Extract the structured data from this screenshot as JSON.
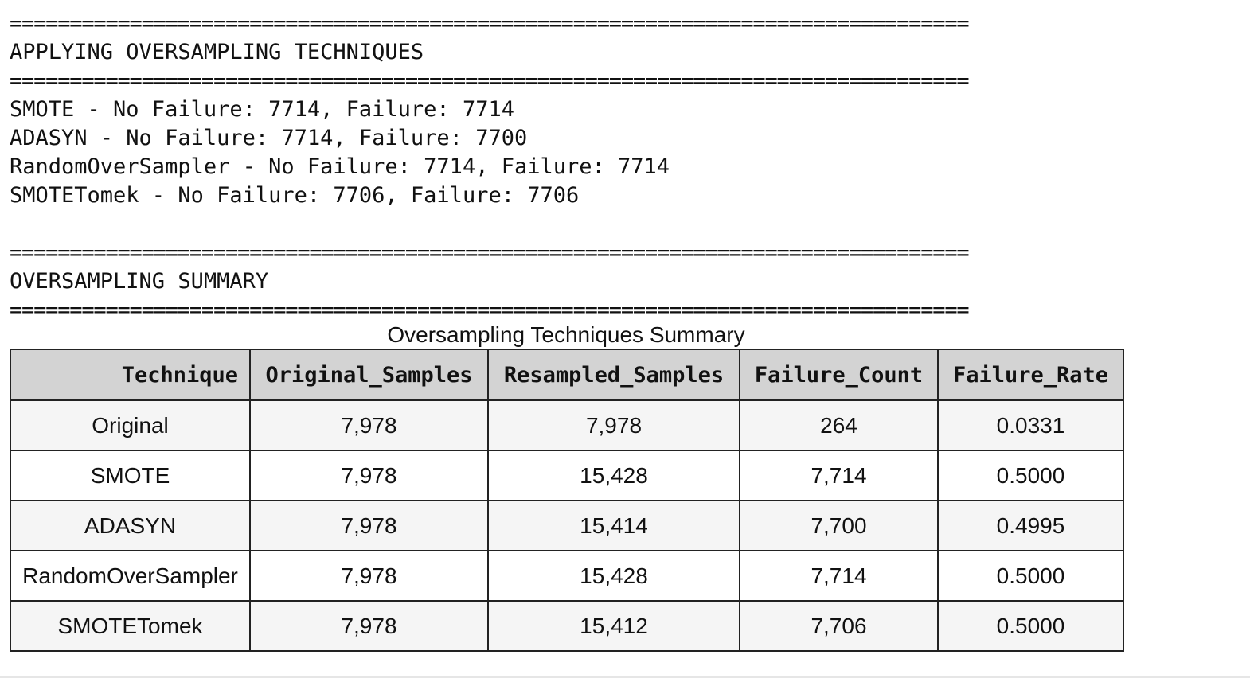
{
  "separator": "================================================================================",
  "section1": {
    "title": "APPLYING OVERSAMPLING TECHNIQUES",
    "lines": [
      "SMOTE - No Failure: 7714, Failure: 7714",
      "ADASYN - No Failure: 7714, Failure: 7700",
      "RandomOverSampler - No Failure: 7714, Failure: 7714",
      "SMOTETomek - No Failure: 7706, Failure: 7706"
    ]
  },
  "section2": {
    "title": "OVERSAMPLING SUMMARY"
  },
  "table": {
    "caption": "Oversampling Techniques Summary",
    "headers": [
      "Technique",
      "Original_Samples",
      "Resampled_Samples",
      "Failure_Count",
      "Failure_Rate"
    ],
    "rows": [
      [
        "Original",
        "7,978",
        "7,978",
        "264",
        "0.0331"
      ],
      [
        "SMOTE",
        "7,978",
        "15,428",
        "7,714",
        "0.5000"
      ],
      [
        "ADASYN",
        "7,978",
        "15,414",
        "7,700",
        "0.4995"
      ],
      [
        "RandomOverSampler",
        "7,978",
        "15,428",
        "7,714",
        "0.5000"
      ],
      [
        "SMOTETomek",
        "7,978",
        "15,412",
        "7,706",
        "0.5000"
      ]
    ]
  }
}
